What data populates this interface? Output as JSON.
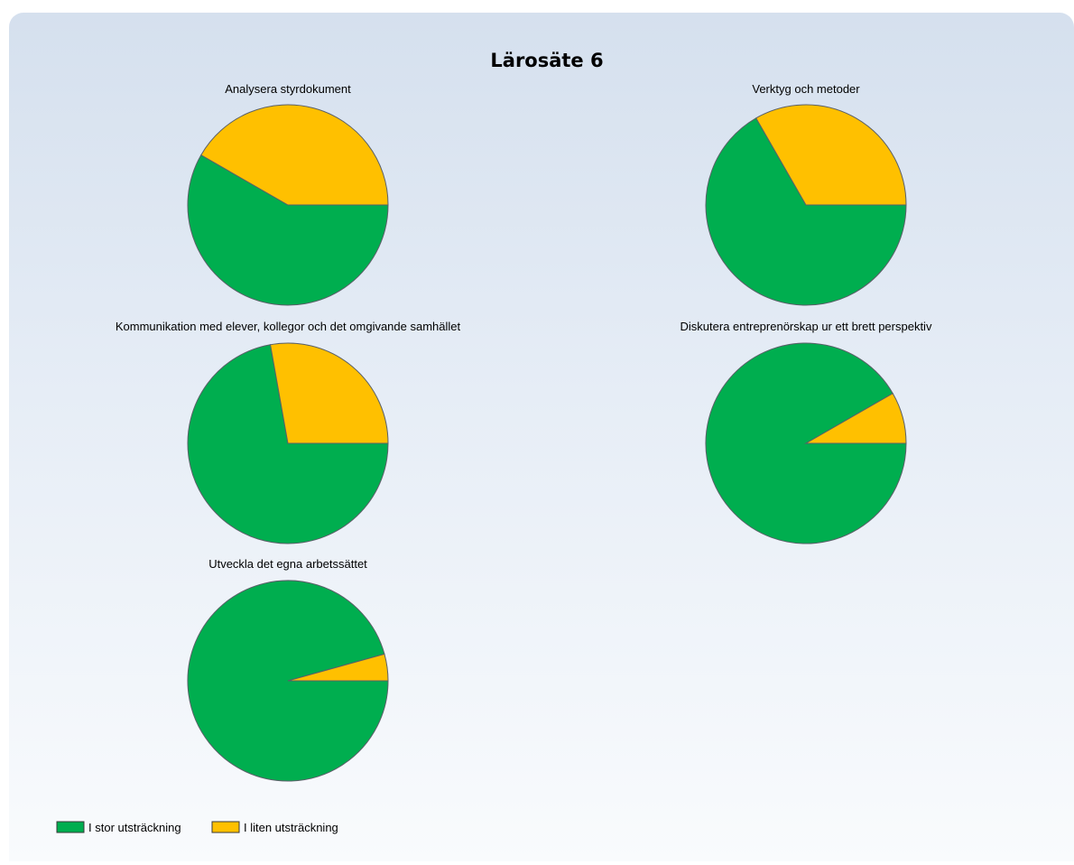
{
  "chart_data": {
    "type": "pie",
    "title": "Lärosäte 6",
    "categories": [
      "I stor utsträckning",
      "I liten utsträckning"
    ],
    "colors": [
      "#00ae4f",
      "#ffc000"
    ],
    "pies": [
      {
        "title": "Analysera styrdokument",
        "values": [
          0.583,
          0.417
        ]
      },
      {
        "title": "Verktyg och metoder",
        "values": [
          0.667,
          0.333
        ]
      },
      {
        "title": "Kommunikation med elever, kollegor och det omgivande samhället",
        "values": [
          0.722,
          0.278
        ]
      },
      {
        "title": "Diskutera entreprenörskap ur ett brett perspektiv",
        "values": [
          0.917,
          0.083
        ]
      },
      {
        "title": "Utveckla det egna arbetssättet",
        "values": [
          0.957,
          0.043
        ]
      }
    ],
    "legend": {
      "placement": "bottom-left",
      "items": [
        "I stor utsträckning",
        "I liten utsträckning"
      ]
    }
  }
}
